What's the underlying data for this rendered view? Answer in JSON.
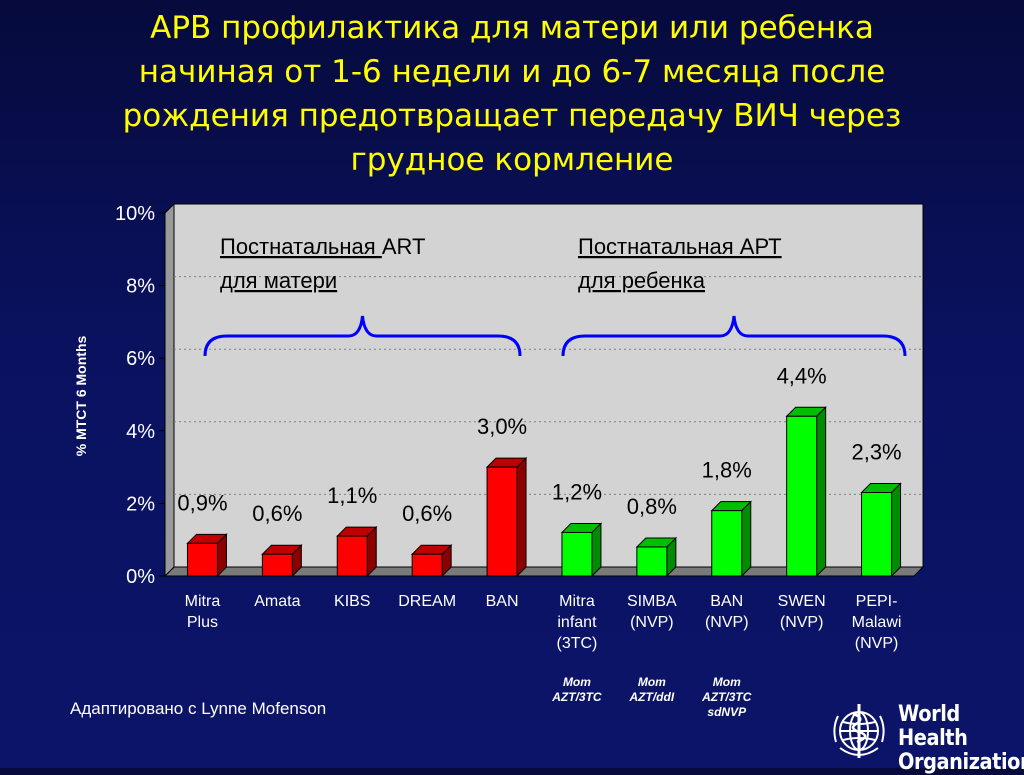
{
  "title_lines": [
    "АРВ профилактика для матери или ребенка",
    "начиная от 1-6 недели и до 6-7 месяца после",
    "рождения предотвращает передачу ВИЧ через",
    "грудное кормление"
  ],
  "source": "Адаптировано с Lynne Mofenson",
  "logo": {
    "line1": "World Health",
    "line2": "Organization",
    "icon": "who-emblem-icon"
  },
  "colors": {
    "background": "#0a1260",
    "title": "#ffff00",
    "plot_area": "#d3d3d3",
    "mother_bars": "#ff0000",
    "child_bars": "#00ff00",
    "brace": "#0000ff"
  },
  "chart_data": {
    "type": "bar",
    "ylabel": "% MTCT 6 Months",
    "ylim": [
      0,
      10
    ],
    "yticks": [
      "0%",
      "2%",
      "4%",
      "6%",
      "8%",
      "10%"
    ],
    "grid": true,
    "groups": [
      {
        "label_part1": "Постнатальная ",
        "label_part2": "ART",
        "label_line2": "для матери"
      },
      {
        "label_part1": "Постнатальная АРТ",
        "label_part2": "",
        "label_line2": "для ребенка"
      }
    ],
    "bars": [
      {
        "label": [
          "Mitra",
          "Plus"
        ],
        "value": 0.9,
        "value_label": "0,9%",
        "group": 0,
        "note": []
      },
      {
        "label": [
          "Amata"
        ],
        "value": 0.6,
        "value_label": "0,6%",
        "group": 0,
        "note": []
      },
      {
        "label": [
          "KIBS"
        ],
        "value": 1.1,
        "value_label": "1,1%",
        "group": 0,
        "note": []
      },
      {
        "label": [
          "DREAM"
        ],
        "value": 0.6,
        "value_label": "0,6%",
        "group": 0,
        "note": []
      },
      {
        "label": [
          "BAN"
        ],
        "value": 3.0,
        "value_label": "3,0%",
        "group": 0,
        "note": []
      },
      {
        "label": [
          "Mitra",
          "infant",
          "(3TC)"
        ],
        "value": 1.2,
        "value_label": "1,2%",
        "group": 1,
        "note": [
          "Mom",
          "AZT/3TC"
        ]
      },
      {
        "label": [
          "SIMBA",
          "(NVP)"
        ],
        "value": 0.8,
        "value_label": "0,8%",
        "group": 1,
        "note": [
          "Mom",
          "AZT/ddI"
        ]
      },
      {
        "label": [
          "BAN",
          "(NVP)"
        ],
        "value": 1.8,
        "value_label": "1,8%",
        "group": 1,
        "note": [
          "Mom",
          "AZT/3TC",
          "sdNVP"
        ]
      },
      {
        "label": [
          "SWEN",
          "(NVP)"
        ],
        "value": 4.4,
        "value_label": "4,4%",
        "group": 1,
        "note": []
      },
      {
        "label": [
          "PEPI-",
          "Malawi",
          "(NVP)"
        ],
        "value": 2.3,
        "value_label": "2,3%",
        "group": 1,
        "note": []
      }
    ]
  }
}
